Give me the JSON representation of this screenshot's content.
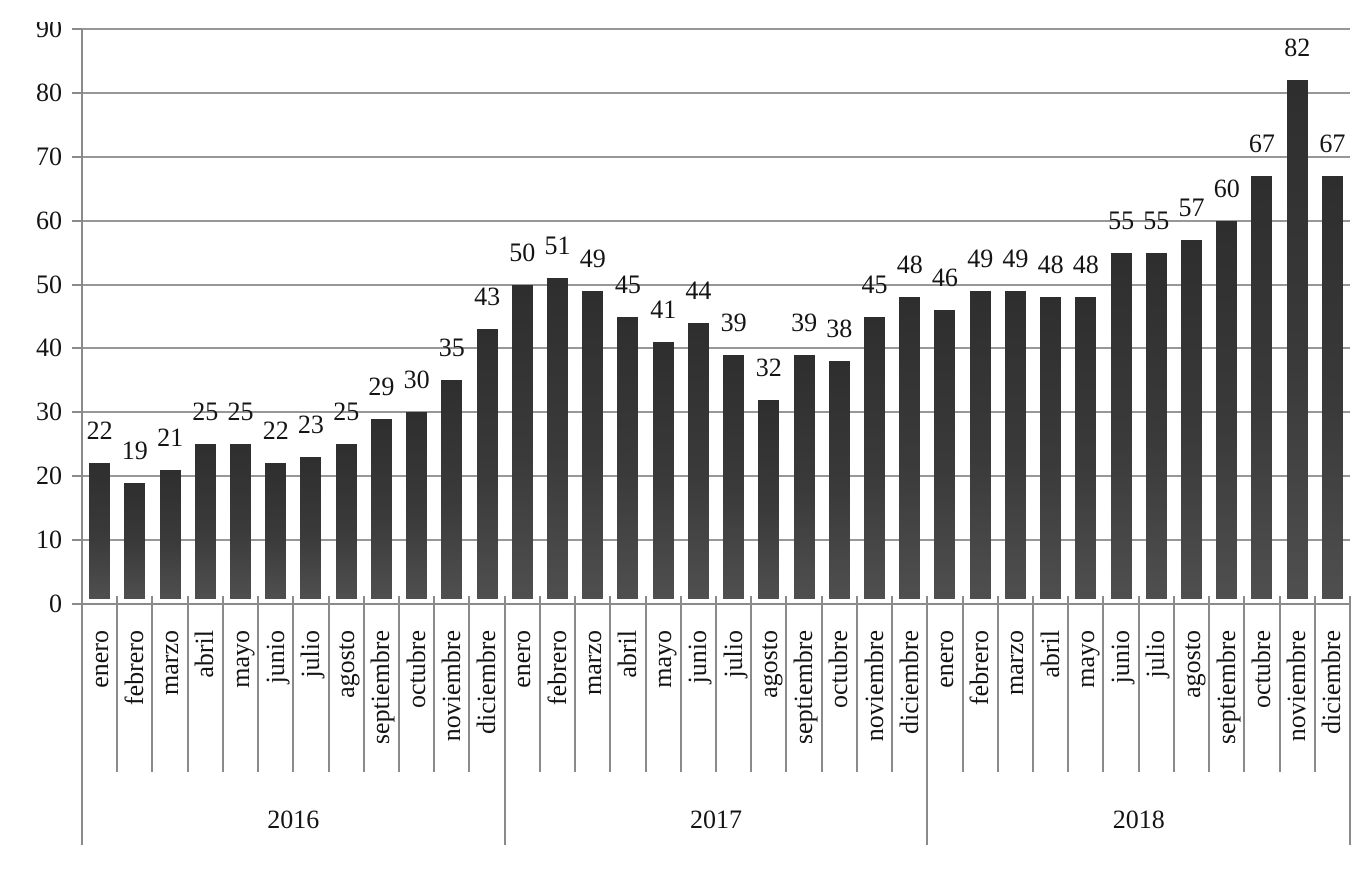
{
  "chart_data": {
    "type": "bar",
    "title": "",
    "xlabel": "",
    "ylabel": "",
    "ylim": [
      0,
      90
    ],
    "ytick_step": 10,
    "ytick_labels": [
      "0",
      "10",
      "20",
      "30",
      "40",
      "50",
      "60",
      "70",
      "80",
      "90"
    ],
    "grid": true,
    "legend_position": "none",
    "data_labels": "outside-end",
    "x_axis_levels": [
      "month",
      "year"
    ],
    "month_names": [
      "enero",
      "febrero",
      "marzo",
      "abril",
      "mayo",
      "junio",
      "julio",
      "agosto",
      "septiembre",
      "octubre",
      "noviembre",
      "diciembre"
    ],
    "groups": [
      {
        "year": "2016",
        "values": [
          22,
          19,
          21,
          25,
          25,
          22,
          23,
          25,
          29,
          30,
          35,
          43
        ]
      },
      {
        "year": "2017",
        "values": [
          50,
          51,
          49,
          45,
          41,
          44,
          39,
          32,
          39,
          38,
          45,
          48
        ]
      },
      {
        "year": "2018",
        "values": [
          46,
          49,
          49,
          48,
          48,
          55,
          55,
          57,
          60,
          67,
          82,
          67
        ]
      }
    ],
    "colors": {
      "bar_top": "#2e2e2e",
      "bar_bottom": "#4f4f4f",
      "grid_line": "#979797",
      "axis_line": "#8a8a8a",
      "text": "#141414",
      "background": "#ffffff"
    }
  }
}
